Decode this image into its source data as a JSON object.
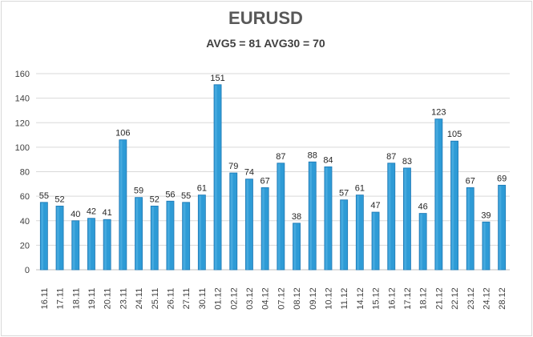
{
  "chart_data": {
    "type": "bar",
    "title": "EURUSD",
    "subtitle": "AVG5 = 81 AVG30 = 70",
    "xlabel": "",
    "ylabel": "",
    "ylim": [
      0,
      160
    ],
    "yticks": [
      0,
      20,
      40,
      60,
      80,
      100,
      120,
      140,
      160
    ],
    "grid": true,
    "legend": "none",
    "bar_color": "#2e9bd6",
    "bar_edge_color": "#1f78b4",
    "categories": [
      "16.11",
      "17.11",
      "18.11",
      "19.11",
      "20.11",
      "23.11",
      "24.11",
      "25.11",
      "26.11",
      "27.11",
      "30.11",
      "01.12",
      "02.12",
      "03.12",
      "04.12",
      "07.12",
      "08.12",
      "09.12",
      "10.12",
      "11.12",
      "14.12",
      "15.12",
      "16.12",
      "17.12",
      "18.12",
      "21.12",
      "22.12",
      "23.12",
      "24.12",
      "28.12"
    ],
    "values": [
      55,
      52,
      40,
      42,
      41,
      106,
      59,
      52,
      56,
      55,
      61,
      151,
      79,
      74,
      67,
      87,
      38,
      88,
      84,
      57,
      61,
      47,
      87,
      83,
      46,
      123,
      105,
      67,
      39,
      69
    ]
  }
}
